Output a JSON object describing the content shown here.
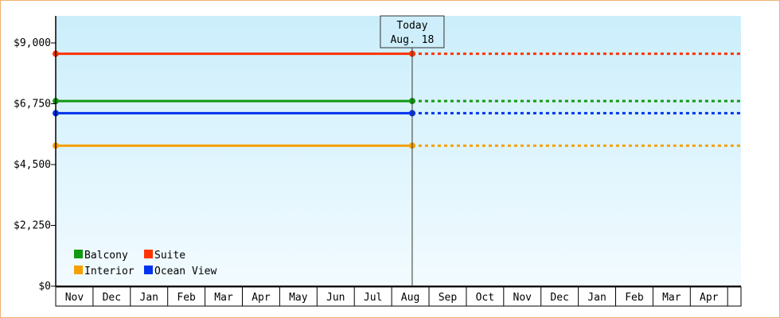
{
  "chart_data": {
    "type": "line",
    "title": "",
    "xlabel": "",
    "ylabel": "",
    "ylim": [
      0,
      10000
    ],
    "y_ticks": [
      {
        "value": 0,
        "label": "$0"
      },
      {
        "value": 2250,
        "label": "$2,250"
      },
      {
        "value": 4500,
        "label": "$4,500"
      },
      {
        "value": 6750,
        "label": "$6,750"
      },
      {
        "value": 9000,
        "label": "$9,000"
      }
    ],
    "x_categories": [
      "Nov",
      "Dec",
      "Jan",
      "Feb",
      "Mar",
      "Apr",
      "May",
      "Jun",
      "Jul",
      "Aug",
      "Sep",
      "Oct",
      "Nov",
      "Dec",
      "Jan",
      "Feb",
      "Mar",
      "Apr"
    ],
    "today": {
      "line1": "Today",
      "line2": "Aug. 18",
      "x_index": 9.55
    },
    "grid": false,
    "legend_position": "bottom-left",
    "series": [
      {
        "name": "Balcony",
        "color": "#119911",
        "value": 6850,
        "x_start": 0,
        "x_end_solid": 9.55,
        "x_end_dashed": 18.7
      },
      {
        "name": "Suite",
        "color": "#ff3300",
        "value": 8600,
        "x_start": 0,
        "x_end_solid": 9.55,
        "x_end_dashed": 18.7
      },
      {
        "name": "Interior",
        "color": "#f5a000",
        "value": 5200,
        "x_start": 0,
        "x_end_solid": 9.55,
        "x_end_dashed": 18.7
      },
      {
        "name": "Ocean View",
        "color": "#0033ee",
        "value": 6400,
        "x_start": 0,
        "x_end_solid": 9.55,
        "x_end_dashed": 18.7
      }
    ]
  }
}
